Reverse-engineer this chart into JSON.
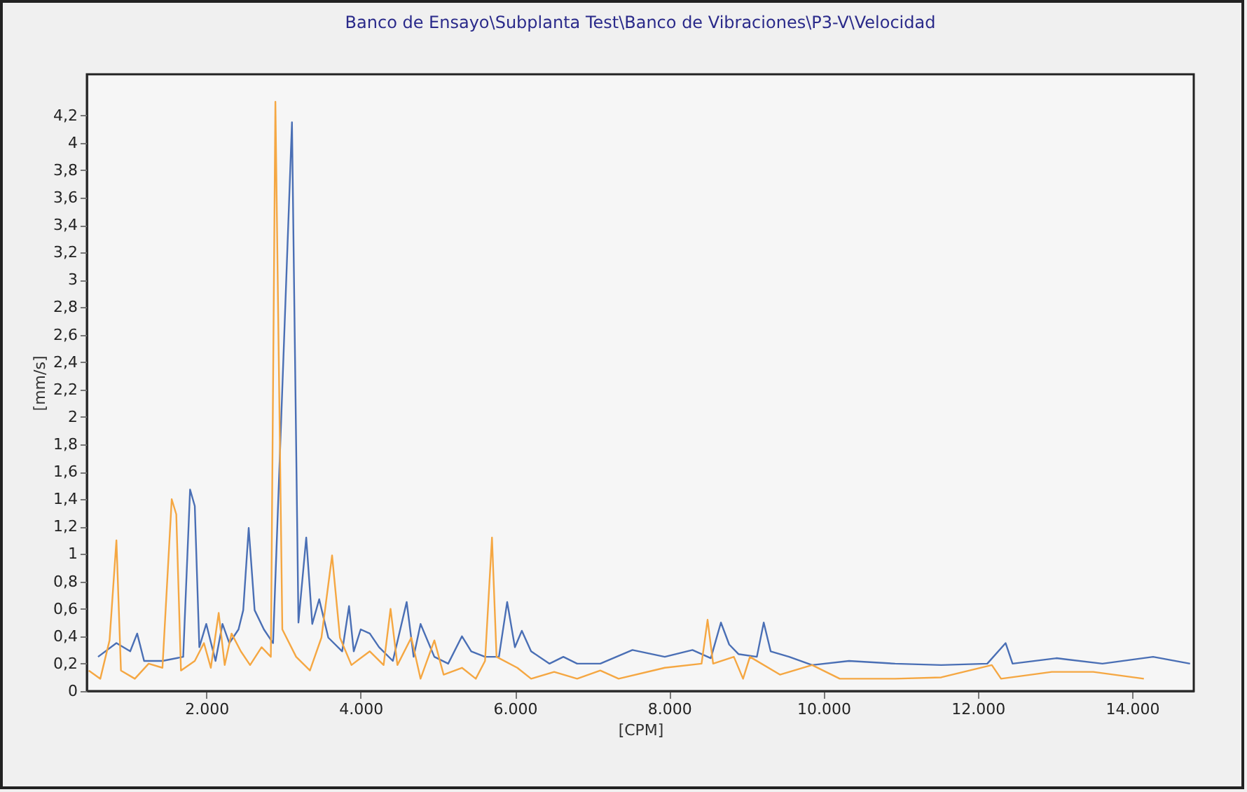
{
  "chart_data": {
    "type": "line",
    "title": "Banco de Ensayo\\Subplanta Test\\Banco de Vibraciones\\P3-V\\Velocidad",
    "xlabel": "[CPM]",
    "ylabel": "[mm/s]",
    "xlim": [
      450,
      14800
    ],
    "ylim": [
      0,
      4.5
    ],
    "xticks": [
      {
        "value": 2000,
        "label": "2.000"
      },
      {
        "value": 4000,
        "label": "4.000"
      },
      {
        "value": 6000,
        "label": "6.000"
      },
      {
        "value": 8000,
        "label": "8.000"
      },
      {
        "value": 10000,
        "label": "10.000"
      },
      {
        "value": 12000,
        "label": "12.000"
      },
      {
        "value": 14000,
        "label": "14.000"
      }
    ],
    "yticks": [
      0,
      {
        "value": 0.2,
        "label": "0,2"
      },
      {
        "value": 0.4,
        "label": "0,4"
      },
      {
        "value": 0.6,
        "label": "0,6"
      },
      {
        "value": 0.8,
        "label": "0,8"
      },
      1,
      {
        "value": 1.2,
        "label": "1,2"
      },
      {
        "value": 1.4,
        "label": "1,4"
      },
      {
        "value": 1.6,
        "label": "1,6"
      },
      {
        "value": 1.8,
        "label": "1,8"
      },
      2,
      {
        "value": 2.2,
        "label": "2,2"
      },
      {
        "value": 2.4,
        "label": "2,4"
      },
      {
        "value": 2.6,
        "label": "2,6"
      },
      {
        "value": 2.8,
        "label": "2,8"
      },
      3,
      {
        "value": 3.2,
        "label": "3,2"
      },
      {
        "value": 3.4,
        "label": "3,4"
      },
      {
        "value": 3.6,
        "label": "3,6"
      },
      {
        "value": 3.8,
        "label": "3,8"
      },
      4,
      {
        "value": 4.2,
        "label": "4,2"
      }
    ],
    "grid": false,
    "marker": "none",
    "line_style": "solid",
    "series": [
      {
        "color": "#4a6fb5",
        "x": [
          595,
          833,
          1012,
          1102,
          1192,
          1430,
          1699,
          1788,
          1849,
          1908,
          1998,
          2118,
          2208,
          2297,
          2416,
          2477,
          2548,
          2625,
          2745,
          2864,
          3109,
          3193,
          3294,
          3372,
          3462,
          3580,
          3760,
          3849,
          3910,
          4000,
          4118,
          4238,
          4417,
          4596,
          4686,
          4776,
          4955,
          5134,
          5313,
          5433,
          5612,
          5792,
          5899,
          5999,
          6089,
          6209,
          6448,
          6627,
          6806,
          7106,
          7523,
          7942,
          8301,
          8539,
          8670,
          8777,
          8897,
          9136,
          9225,
          9315,
          9555,
          9852,
          10331,
          10928,
          11526,
          12123,
          12361,
          12451,
          13019,
          13616,
          14273,
          14752
        ],
        "values": [
          0.25,
          0.35,
          0.29,
          0.42,
          0.22,
          0.22,
          0.25,
          1.47,
          1.35,
          0.32,
          0.49,
          0.22,
          0.49,
          0.35,
          0.45,
          0.59,
          1.19,
          0.59,
          0.45,
          0.35,
          4.15,
          0.5,
          1.12,
          0.49,
          0.67,
          0.39,
          0.29,
          0.62,
          0.29,
          0.45,
          0.42,
          0.32,
          0.22,
          0.65,
          0.25,
          0.49,
          0.25,
          0.2,
          0.4,
          0.29,
          0.25,
          0.25,
          0.65,
          0.32,
          0.44,
          0.29,
          0.2,
          0.25,
          0.2,
          0.2,
          0.3,
          0.25,
          0.3,
          0.24,
          0.5,
          0.34,
          0.27,
          0.25,
          0.5,
          0.29,
          0.25,
          0.19,
          0.22,
          0.2,
          0.19,
          0.2,
          0.35,
          0.2,
          0.24,
          0.2,
          0.25,
          0.2
        ]
      },
      {
        "color": "#f5a742",
        "x": [
          475,
          624,
          744,
          833,
          892,
          1072,
          1251,
          1430,
          1550,
          1609,
          1670,
          1849,
          1968,
          2057,
          2159,
          2237,
          2326,
          2446,
          2566,
          2715,
          2835,
          2894,
          2984,
          3163,
          3342,
          3491,
          3629,
          3731,
          3880,
          4118,
          4297,
          4387,
          4476,
          4656,
          4776,
          4955,
          5075,
          5313,
          5492,
          5612,
          5702,
          5761,
          6030,
          6209,
          6508,
          6806,
          7106,
          7344,
          7942,
          8419,
          8497,
          8569,
          8838,
          8957,
          9046,
          9435,
          9852,
          10211,
          10928,
          11526,
          12182,
          12302,
          12960,
          13497,
          14153
        ],
        "values": [
          0.15,
          0.09,
          0.37,
          1.1,
          0.15,
          0.09,
          0.2,
          0.17,
          1.4,
          1.29,
          0.15,
          0.22,
          0.35,
          0.17,
          0.57,
          0.19,
          0.42,
          0.29,
          0.19,
          0.32,
          0.25,
          4.3,
          0.45,
          0.25,
          0.15,
          0.39,
          0.99,
          0.39,
          0.19,
          0.29,
          0.19,
          0.6,
          0.19,
          0.39,
          0.09,
          0.37,
          0.12,
          0.17,
          0.09,
          0.22,
          1.12,
          0.25,
          0.17,
          0.09,
          0.14,
          0.09,
          0.15,
          0.09,
          0.17,
          0.2,
          0.52,
          0.2,
          0.25,
          0.09,
          0.25,
          0.12,
          0.19,
          0.09,
          0.09,
          0.1,
          0.19,
          0.09,
          0.14,
          0.14,
          0.09
        ]
      }
    ]
  }
}
